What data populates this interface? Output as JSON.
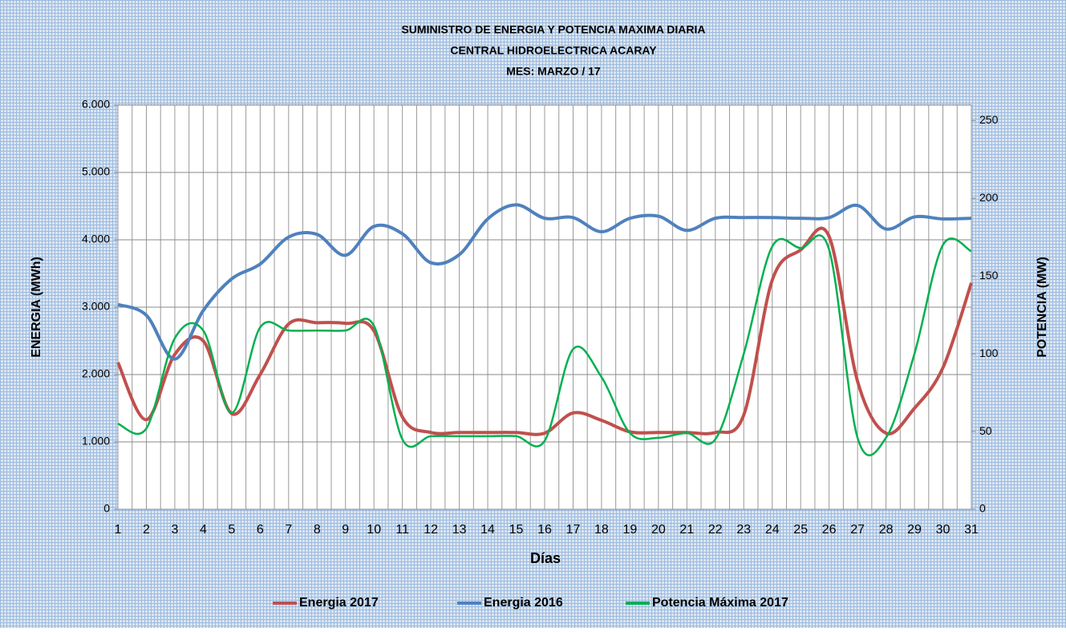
{
  "chart_data": {
    "type": "line",
    "title": "SUMINISTRO DE ENERGIA  Y POTENCIA MAXIMA DIARIA",
    "subtitle": "CENTRAL HIDROELECTRICA ACARAY",
    "subtitle2": "MES:  MARZO / 17",
    "x_label": "Días",
    "y_label": "ENERGIA (MWh)",
    "y2_label": "POTENCIA (MW)",
    "x": [
      1,
      2,
      3,
      4,
      5,
      6,
      7,
      8,
      9,
      10,
      11,
      12,
      13,
      14,
      15,
      16,
      17,
      18,
      19,
      20,
      21,
      22,
      23,
      24,
      25,
      26,
      27,
      28,
      29,
      30,
      31
    ],
    "xlim": [
      1,
      31
    ],
    "ylim": [
      0,
      6000
    ],
    "yticks": [
      {
        "value": 0,
        "label": "0"
      },
      {
        "value": 1000,
        "label": "1.000"
      },
      {
        "value": 2000,
        "label": "2.000"
      },
      {
        "value": 3000,
        "label": "3.000"
      },
      {
        "value": 4000,
        "label": "4.000"
      },
      {
        "value": 5000,
        "label": "5.000"
      },
      {
        "value": 6000,
        "label": "6.000"
      }
    ],
    "y2lim": [
      0,
      260
    ],
    "y2ticks": [
      0,
      50,
      100,
      150,
      200,
      250
    ],
    "grid": true,
    "legend": "bottom",
    "series": [
      {
        "name": "Energia 2017",
        "color": "#c0504d",
        "values": [
          2180,
          1330,
          2300,
          2500,
          1420,
          2000,
          2750,
          2770,
          2760,
          2650,
          1370,
          1140,
          1140,
          1140,
          1140,
          1130,
          1430,
          1320,
          1150,
          1140,
          1140,
          1140,
          1400,
          3400,
          3850,
          4050,
          1900,
          1130,
          1500,
          2100,
          3360
        ]
      },
      {
        "name": "Energia 2016",
        "color": "#4f81bd",
        "values": [
          3040,
          2880,
          2230,
          2950,
          3420,
          3640,
          4040,
          4080,
          3770,
          4200,
          4090,
          3660,
          3780,
          4310,
          4520,
          4320,
          4330,
          4120,
          4320,
          4350,
          4140,
          4320,
          4330,
          4330,
          4320,
          4330,
          4510,
          4160,
          4340,
          4310,
          4320
        ]
      },
      {
        "name": "Potencia Máxima 2017",
        "color": "#00b050",
        "axis": "y2",
        "values": [
          55,
          52,
          110,
          115,
          62,
          117,
          115,
          115,
          115,
          118,
          45,
          47,
          47,
          47,
          47,
          44,
          103,
          85,
          49,
          46,
          49,
          45,
          100,
          169,
          168,
          167,
          46,
          46,
          100,
          170,
          166
        ]
      }
    ]
  }
}
